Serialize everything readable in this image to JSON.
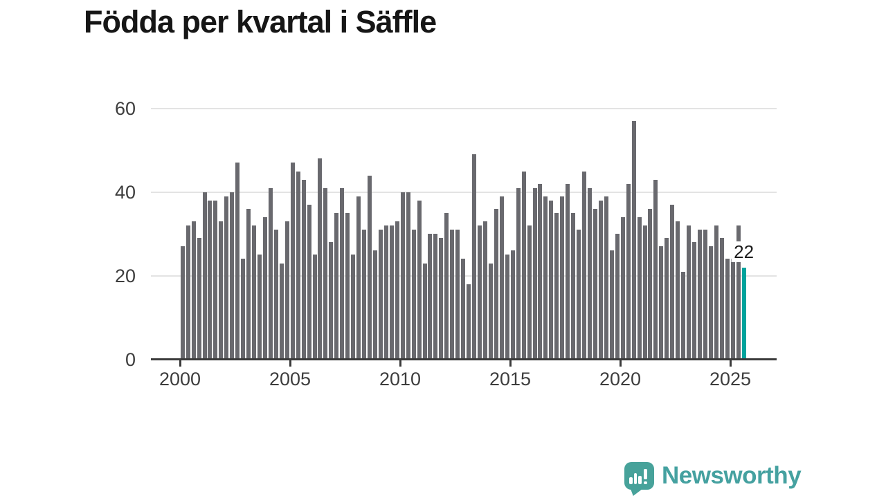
{
  "header": {
    "title": "Födda per kvartal i Säffle"
  },
  "logo": {
    "text": "Newsworthy",
    "icon": "speech-bubble-bar-chart-icon"
  },
  "colors": {
    "bar": "#69696e",
    "highlight": "#00a39c",
    "axis": "#3b3b3b",
    "gridline": "#e3e3e3",
    "tick_label": "#3d3d3d",
    "title": "#161616",
    "logo": "#47a29a"
  },
  "chart_data": {
    "type": "bar",
    "title": "Födda per kvartal i Säffle",
    "xlabel": "",
    "ylabel": "",
    "x_tick_labels": [
      "2000",
      "2005",
      "2010",
      "2015",
      "2020",
      "2025"
    ],
    "y_tick_labels": [
      "0",
      "20",
      "40",
      "60"
    ],
    "y_gridlines": [
      20,
      40,
      60
    ],
    "ylim": [
      0,
      60
    ],
    "grid": true,
    "legend": "none",
    "series_by_year": [
      {
        "year": 2000,
        "values": [
          27,
          32,
          33,
          29
        ]
      },
      {
        "year": 2001,
        "values": [
          40,
          38,
          38,
          33
        ]
      },
      {
        "year": 2002,
        "values": [
          39,
          40,
          47,
          24
        ]
      },
      {
        "year": 2003,
        "values": [
          36,
          32,
          25,
          34
        ]
      },
      {
        "year": 2004,
        "values": [
          41,
          31,
          23,
          33
        ]
      },
      {
        "year": 2005,
        "values": [
          47,
          45,
          43,
          37
        ]
      },
      {
        "year": 2006,
        "values": [
          25,
          48,
          41,
          28
        ]
      },
      {
        "year": 2007,
        "values": [
          35,
          41,
          35,
          25
        ]
      },
      {
        "year": 2008,
        "values": [
          39,
          31,
          44,
          26
        ]
      },
      {
        "year": 2009,
        "values": [
          31,
          32,
          32,
          33
        ]
      },
      {
        "year": 2010,
        "values": [
          40,
          40,
          31,
          38
        ]
      },
      {
        "year": 2011,
        "values": [
          23,
          30,
          30,
          29
        ]
      },
      {
        "year": 2012,
        "values": [
          35,
          31,
          31,
          24
        ]
      },
      {
        "year": 2013,
        "values": [
          18,
          49,
          32,
          33
        ]
      },
      {
        "year": 2014,
        "values": [
          23,
          36,
          39,
          25
        ]
      },
      {
        "year": 2015,
        "values": [
          26,
          41,
          45,
          32
        ]
      },
      {
        "year": 2016,
        "values": [
          41,
          42,
          39,
          38
        ]
      },
      {
        "year": 2017,
        "values": [
          35,
          39,
          42,
          35
        ]
      },
      {
        "year": 2018,
        "values": [
          31,
          45,
          41,
          36
        ]
      },
      {
        "year": 2019,
        "values": [
          38,
          39,
          26,
          30
        ]
      },
      {
        "year": 2020,
        "values": [
          34,
          42,
          57,
          34
        ]
      },
      {
        "year": 2021,
        "values": [
          32,
          36,
          43,
          27
        ]
      },
      {
        "year": 2022,
        "values": [
          29,
          37,
          33,
          21
        ]
      },
      {
        "year": 2023,
        "values": [
          32,
          28,
          31,
          31
        ]
      },
      {
        "year": 2024,
        "values": [
          27,
          32,
          29,
          24
        ]
      },
      {
        "year": 2025,
        "values": [
          24,
          32,
          22
        ]
      }
    ],
    "highlight": {
      "category": "2025 Q3",
      "value": 22,
      "label": "22",
      "color": "#00a39c"
    }
  }
}
